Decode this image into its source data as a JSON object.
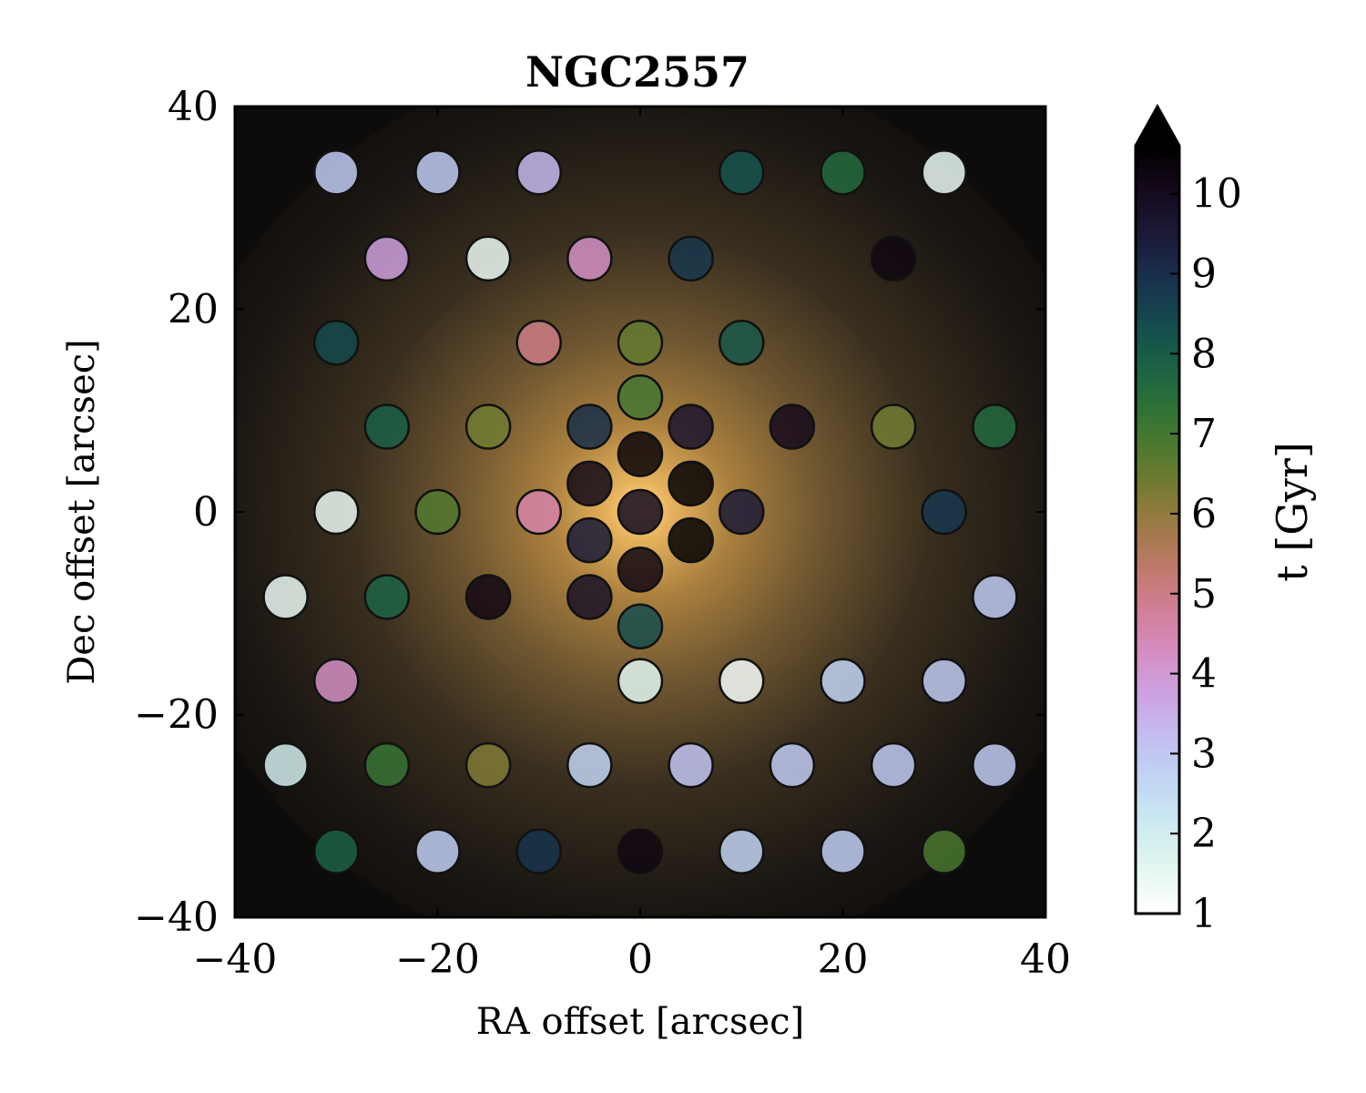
{
  "chart_data": {
    "type": "scatter",
    "title": "NGC2557",
    "xlabel": "RA offset [arcsec]",
    "ylabel": "Dec offset [arcsec]",
    "xlim": [
      -40,
      40
    ],
    "ylim": [
      -40,
      40
    ],
    "xticks": [
      -40,
      -20,
      0,
      20,
      40
    ],
    "yticks": [
      -40,
      -20,
      0,
      20,
      40
    ],
    "colorbar": {
      "label": "t [Gyr]",
      "range": [
        1,
        10.6
      ],
      "ticks": [
        1,
        2,
        3,
        4,
        5,
        6,
        7,
        8,
        9,
        10
      ],
      "extend": "max",
      "colormap": "cubehelix_r"
    },
    "points": [
      {
        "x": -30,
        "y": 33.5,
        "t": 2.9
      },
      {
        "x": -20,
        "y": 33.5,
        "t": 2.9
      },
      {
        "x": -10,
        "y": 33.5,
        "t": 3.3
      },
      {
        "x": 10,
        "y": 33.5,
        "t": 8.2
      },
      {
        "x": 20,
        "y": 33.5,
        "t": 7.6
      },
      {
        "x": 30,
        "y": 33.5,
        "t": 1.4
      },
      {
        "x": -25,
        "y": 25,
        "t": 3.8
      },
      {
        "x": -15,
        "y": 25,
        "t": 1.4
      },
      {
        "x": -5,
        "y": 25,
        "t": 4.2
      },
      {
        "x": 5,
        "y": 25,
        "t": 8.8
      },
      {
        "x": 25,
        "y": 25,
        "t": 10.2
      },
      {
        "x": -30,
        "y": 16.7,
        "t": 8.4
      },
      {
        "x": -10,
        "y": 16.7,
        "t": 5.0
      },
      {
        "x": 0,
        "y": 16.7,
        "t": 6.6
      },
      {
        "x": 10,
        "y": 16.7,
        "t": 8.1
      },
      {
        "x": 0,
        "y": 11.3,
        "t": 7.0
      },
      {
        "x": -25,
        "y": 8.4,
        "t": 7.9
      },
      {
        "x": -15,
        "y": 8.4,
        "t": 6.4
      },
      {
        "x": -5,
        "y": 8.4,
        "t": 9.0
      },
      {
        "x": 5,
        "y": 8.4,
        "t": 9.7
      },
      {
        "x": 15,
        "y": 8.4,
        "t": 10.0
      },
      {
        "x": 25,
        "y": 8.4,
        "t": 6.4
      },
      {
        "x": 35,
        "y": 8.4,
        "t": 7.6
      },
      {
        "x": 0,
        "y": 5.7,
        "t": 10.4
      },
      {
        "x": -5,
        "y": 2.8,
        "t": 10.1
      },
      {
        "x": 5,
        "y": 2.8,
        "t": 10.5
      },
      {
        "x": -30,
        "y": 0,
        "t": 1.4
      },
      {
        "x": -20,
        "y": 0,
        "t": 6.8
      },
      {
        "x": -10,
        "y": 0,
        "t": 4.6
      },
      {
        "x": 0,
        "y": 0,
        "t": 10.0
      },
      {
        "x": 10,
        "y": 0,
        "t": 9.5
      },
      {
        "x": 30,
        "y": 0,
        "t": 8.8
      },
      {
        "x": -5,
        "y": -2.8,
        "t": 9.5
      },
      {
        "x": 5,
        "y": -2.8,
        "t": 10.5
      },
      {
        "x": 0,
        "y": -5.7,
        "t": 10.2
      },
      {
        "x": -35,
        "y": -8.4,
        "t": 1.4
      },
      {
        "x": -25,
        "y": -8.4,
        "t": 7.8
      },
      {
        "x": -15,
        "y": -8.4,
        "t": 10.2
      },
      {
        "x": -5,
        "y": -8.4,
        "t": 9.8
      },
      {
        "x": 35,
        "y": -8.4,
        "t": 2.9
      },
      {
        "x": 0,
        "y": -11.3,
        "t": 8.3
      },
      {
        "x": -30,
        "y": -16.7,
        "t": 4.2
      },
      {
        "x": 0,
        "y": -16.7,
        "t": 1.6
      },
      {
        "x": 10,
        "y": -16.7,
        "t": 1.2
      },
      {
        "x": 20,
        "y": -16.7,
        "t": 2.7
      },
      {
        "x": 30,
        "y": -16.7,
        "t": 2.9
      },
      {
        "x": -35,
        "y": -25,
        "t": 1.9
      },
      {
        "x": -25,
        "y": -25,
        "t": 7.2
      },
      {
        "x": -15,
        "y": -25,
        "t": 6.2
      },
      {
        "x": -5,
        "y": -25,
        "t": 2.7
      },
      {
        "x": 5,
        "y": -25,
        "t": 3.0
      },
      {
        "x": 15,
        "y": -25,
        "t": 2.9
      },
      {
        "x": 25,
        "y": -25,
        "t": 2.9
      },
      {
        "x": 35,
        "y": -25,
        "t": 2.9
      },
      {
        "x": -30,
        "y": -33.5,
        "t": 7.8
      },
      {
        "x": -20,
        "y": -33.5,
        "t": 2.8
      },
      {
        "x": -10,
        "y": -33.5,
        "t": 8.9
      },
      {
        "x": 0,
        "y": -33.5,
        "t": 10.2
      },
      {
        "x": 10,
        "y": -33.5,
        "t": 2.7
      },
      {
        "x": 20,
        "y": -33.5,
        "t": 2.8
      },
      {
        "x": 30,
        "y": -33.5,
        "t": 6.9
      }
    ]
  }
}
